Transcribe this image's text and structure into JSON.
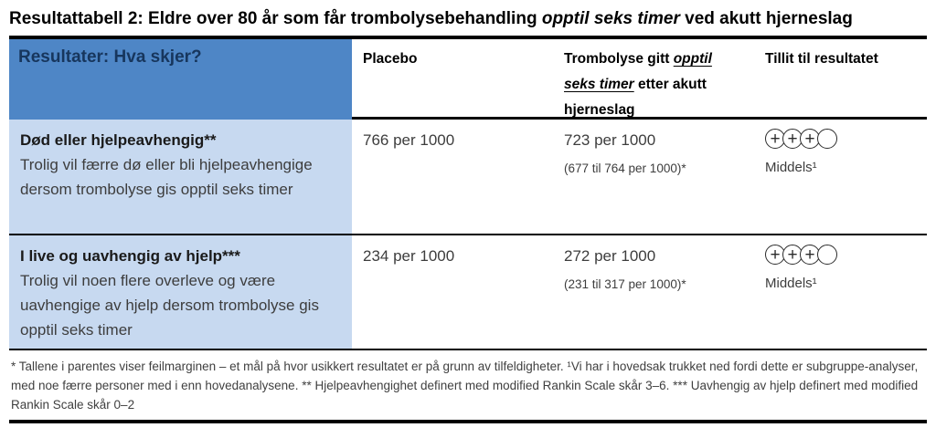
{
  "title": {
    "part1": "Resultattabell 2: Eldre over 80 år som får trombolysebehandling ",
    "emphasis": "opptil seks timer",
    "part2": " ved akutt hjerneslag"
  },
  "colors": {
    "header_blue": "#4e86c6",
    "row_light_blue": "#c7d9f0",
    "header_text_navy": "#17365d",
    "rule_black": "#000000"
  },
  "header": {
    "col1": "Resultater: Hva skjer?",
    "col2": "Placebo",
    "col3": {
      "part1": "Trombolyse gitt ",
      "emphasis": "opptil seks timer",
      "part2": " etter akutt hjerneslag"
    },
    "col4": "Tillit til resultatet"
  },
  "icons": {
    "grade_plus": "+"
  },
  "rows": [
    {
      "outcome_title": "Død eller hjelpeavhengig**",
      "outcome_desc": "Trolig vil færre dø eller bli hjelpeavhengige dersom trombolyse gis opptil seks timer",
      "placebo": "766 per 1000",
      "intervention": "723 per 1000",
      "interval": "(677 til 764 per 1000)*",
      "grade_filled": 3,
      "grade_empty": 1,
      "grade_label": "Middels¹"
    },
    {
      "outcome_title": "I live og uavhengig av hjelp***",
      "outcome_desc": "Trolig vil noen flere overleve og være uavhengige av hjelp dersom trombolyse gis opptil seks timer",
      "placebo": "234 per 1000",
      "intervention": "272 per 1000",
      "interval": "(231 til 317 per 1000)*",
      "grade_filled": 3,
      "grade_empty": 1,
      "grade_label": "Middels¹"
    }
  ],
  "footnote": "* Tallene i parentes viser feilmarginen – et mål på hvor usikkert resultatet er på grunn av tilfeldigheter. ¹Vi har i hovedsak trukket ned fordi dette er subgruppe-analyser, med noe færre personer med i enn hovedanalysene.  ** Hjelpeavhengighet definert med modified Rankin Scale skår 3–6.  *** Uavhengig av hjelp definert med modified Rankin Scale skår 0–2"
}
